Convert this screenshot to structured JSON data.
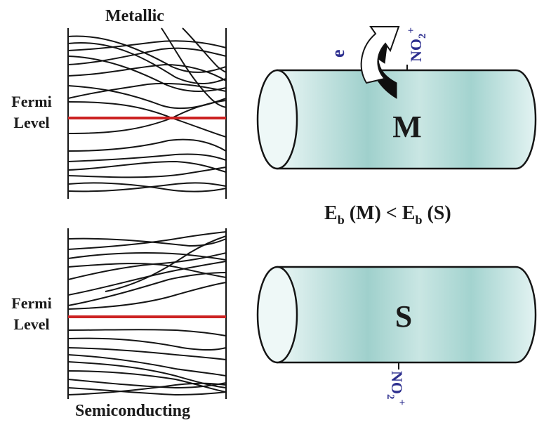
{
  "panels": {
    "metallic": {
      "title": "Metallic",
      "fermi_label_line1": "Fermi",
      "fermi_label_line2": "Level",
      "tube_label": "M",
      "electron_label": "e",
      "adsorbate": {
        "base": "NO",
        "sub": "2",
        "sup": "+"
      }
    },
    "semiconducting": {
      "title": "Semiconducting",
      "fermi_label_line1": "Fermi",
      "fermi_label_line2": "Level",
      "tube_label": "S",
      "adsorbate": {
        "base": "NO",
        "sub": "2",
        "sup": "+"
      }
    }
  },
  "comparison": {
    "left_symbol": "E",
    "left_sub": "b",
    "left_arg": "(M)",
    "relation": "<",
    "right_symbol": "E",
    "right_sub": "b",
    "right_arg": "(S)"
  },
  "colors": {
    "fermi_line": "#cc2222",
    "band_line": "#151515",
    "tube_fill_light": "#e6f4f3",
    "tube_fill_dark": "#9ecfcb",
    "label_blue": "#2d2f8f"
  }
}
